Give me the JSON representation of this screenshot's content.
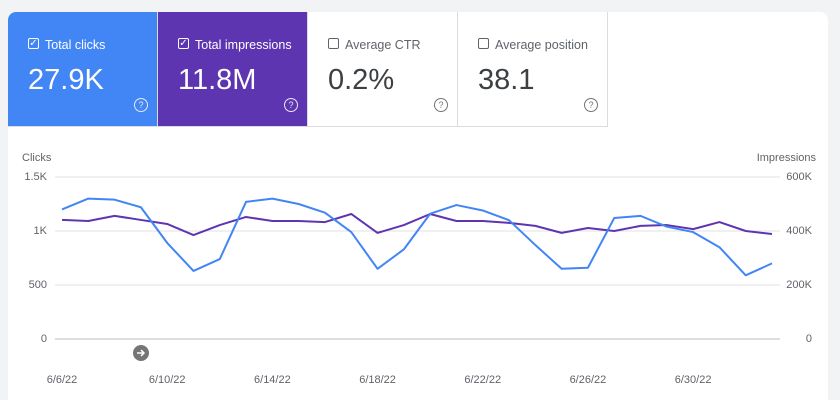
{
  "cards": [
    {
      "label": "Total clicks",
      "value": "27.9K",
      "selected": true,
      "color": "#4285f4"
    },
    {
      "label": "Total impressions",
      "value": "11.8M",
      "selected": true,
      "color": "#5e35b1"
    },
    {
      "label": "Average CTR",
      "value": "0.2%",
      "selected": false,
      "color": "#ffffff"
    },
    {
      "label": "Average position",
      "value": "38.1",
      "selected": false,
      "color": "#ffffff"
    }
  ],
  "chart_data": {
    "type": "line",
    "y_label": "Clicks",
    "y2_label": "Impressions",
    "categories": [
      "6/6/22",
      null,
      null,
      null,
      "6/10/22",
      null,
      null,
      null,
      "6/14/22",
      null,
      null,
      null,
      "6/18/22",
      null,
      null,
      null,
      "6/22/22",
      null,
      null,
      null,
      "6/26/22",
      null,
      null,
      null,
      "6/30/22",
      null,
      null,
      null
    ],
    "series": [
      {
        "name": "Clicks",
        "color": "#4285f4",
        "values": [
          1200,
          1300,
          1290,
          1220,
          890,
          630,
          740,
          1270,
          1300,
          1250,
          1170,
          990,
          650,
          830,
          1160,
          1240,
          1190,
          1100,
          870,
          650,
          660,
          1120,
          1140,
          1040,
          990,
          850,
          590,
          700
        ]
      },
      {
        "name": "Impressions",
        "color": "#5e35b1",
        "axis": "y2",
        "values": [
          441000,
          437000,
          456000,
          441000,
          426000,
          385000,
          422000,
          452000,
          437000,
          437000,
          433000,
          463000,
          393000,
          422000,
          463000,
          437000,
          437000,
          430000,
          419000,
          393000,
          411000,
          400000,
          419000,
          422000,
          407000,
          433000,
          400000,
          389000
        ]
      }
    ],
    "ylim": [
      0,
      1500
    ],
    "yticks": [
      0,
      500,
      {
        "value": 1000,
        "label": "1K"
      },
      {
        "value": 1500,
        "label": "1.5K"
      }
    ],
    "y2lim": [
      0,
      600000
    ],
    "y2ticks": [
      {
        "value": 0,
        "label": "0"
      },
      {
        "value": 200000,
        "label": "200K"
      },
      {
        "value": 400000,
        "label": "400K"
      },
      {
        "value": 600000,
        "label": "600K"
      }
    ],
    "grid": true
  }
}
